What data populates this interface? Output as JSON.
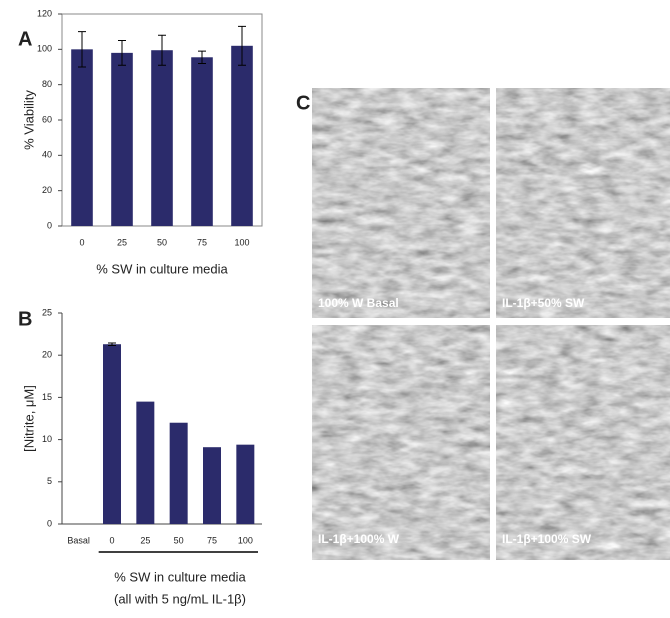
{
  "chart_data": [
    {
      "type": "bar",
      "panel_label": "A",
      "ylabel": "% Viability",
      "xlabel": "% SW in culture media",
      "categories": [
        "0",
        "25",
        "50",
        "75",
        "100"
      ],
      "values": [
        100,
        98,
        99.5,
        95.5,
        102
      ],
      "errors": [
        10,
        7,
        8.5,
        3.5,
        11
      ],
      "color": "#2b2b6b",
      "ylim": [
        0,
        120
      ],
      "yticks": [
        0,
        20,
        40,
        60,
        80,
        100,
        120
      ],
      "frame": true
    },
    {
      "type": "bar",
      "panel_label": "B",
      "ylabel": "[Nitrite, μM]",
      "xlabel": [
        "% SW in culture media",
        "(all with 5 ng/mL IL-1β)"
      ],
      "categories": [
        "Basal",
        "0",
        "25",
        "50",
        "75",
        "100"
      ],
      "values": [
        0,
        21.3,
        14.5,
        12,
        9.1,
        9.4
      ],
      "errors": [
        0,
        0.15,
        0,
        0,
        0,
        0
      ],
      "color": "#2b2b6b",
      "ylim": [
        0,
        25
      ],
      "yticks": [
        0,
        5,
        10,
        15,
        20,
        25
      ],
      "frame": false
    }
  ],
  "panel_c": {
    "panel_label": "C",
    "captions": [
      "100% W Basal",
      "IL-1β+50% SW",
      "IL-1β+100% W",
      "IL-1β+100% SW"
    ]
  }
}
